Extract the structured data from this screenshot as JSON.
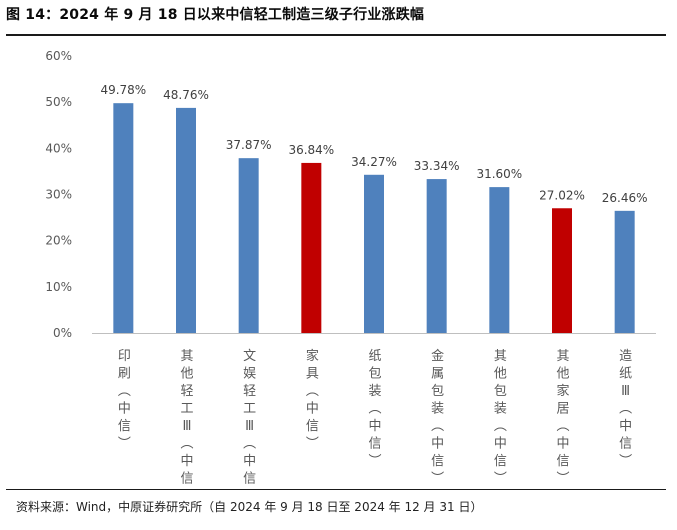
{
  "header": {
    "title": "图 14：2024 年 9 月 18 日以来中信轻工制造三级子行业涨跌幅"
  },
  "footer": {
    "source": "资料来源：Wind，中原证券研究所（自 2024 年 9 月 18 日至 2024 年 12 月 31 日）"
  },
  "colors": {
    "bar_default": "#4f81bd",
    "bar_highlight": "#c00000",
    "axis_text": "#595959",
    "label_text": "#404040"
  },
  "chart_data": {
    "type": "bar",
    "categories": [
      "印刷(中信)",
      "其他轻工Ⅲ(中信)",
      "文娱轻工Ⅲ(中信)",
      "家具(中信)",
      "纸包装(中信)",
      "金属包装(中信)",
      "其他包装(中信)",
      "其他家居(中信)",
      "造纸Ⅲ(中信)"
    ],
    "values": [
      49.78,
      48.76,
      37.87,
      36.84,
      34.27,
      33.34,
      31.6,
      27.02,
      26.46
    ],
    "value_labels": [
      "49.78%",
      "48.76%",
      "37.87%",
      "36.84%",
      "34.27%",
      "33.34%",
      "31.60%",
      "27.02%",
      "26.46%"
    ],
    "highlight": [
      false,
      false,
      false,
      true,
      false,
      false,
      false,
      true,
      false
    ],
    "ylim": [
      0,
      60
    ],
    "yticks": [
      "0%",
      "10%",
      "20%",
      "30%",
      "40%",
      "50%",
      "60%"
    ],
    "grid": false,
    "legend": "none",
    "xlabel": "",
    "ylabel": ""
  }
}
